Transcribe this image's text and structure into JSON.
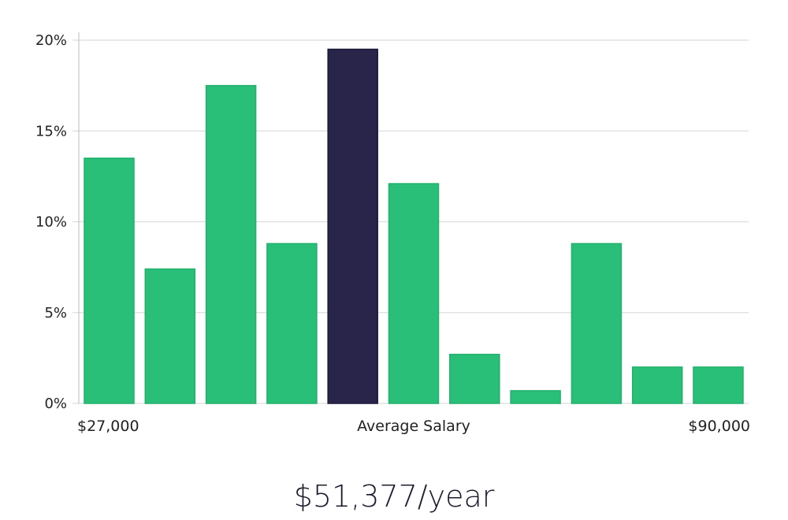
{
  "chart_data": {
    "type": "bar",
    "title": "",
    "xlabel": "Average Salary",
    "ylabel": "",
    "ylim": [
      0,
      20
    ],
    "yticks": [
      0,
      5,
      10,
      15,
      20
    ],
    "ytick_labels": [
      "0%",
      "5%",
      "10%",
      "15%",
      "20%"
    ],
    "x_range_labels": {
      "min": "$27,000",
      "center": "Average Salary",
      "max": "$90,000"
    },
    "values": [
      13.5,
      7.4,
      17.5,
      8.8,
      19.5,
      12.1,
      2.7,
      0.7,
      8.8,
      2.0,
      2.0
    ],
    "highlight_index": 4,
    "colors": {
      "bar": "#2abf78",
      "highlight": "#28244a",
      "grid": "#dddddd",
      "axis": "#bbbbbb"
    }
  },
  "summary": {
    "average_salary": "$51,377/year"
  }
}
